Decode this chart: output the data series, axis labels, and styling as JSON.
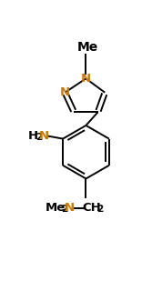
{
  "background": "#ffffff",
  "bond_color": "#000000",
  "N_color": "#cc7700",
  "text_color": "#000000",
  "figsize": [
    1.67,
    3.09
  ],
  "dpi": 100,
  "xlim": [
    0,
    167
  ],
  "ylim": [
    0,
    309
  ]
}
